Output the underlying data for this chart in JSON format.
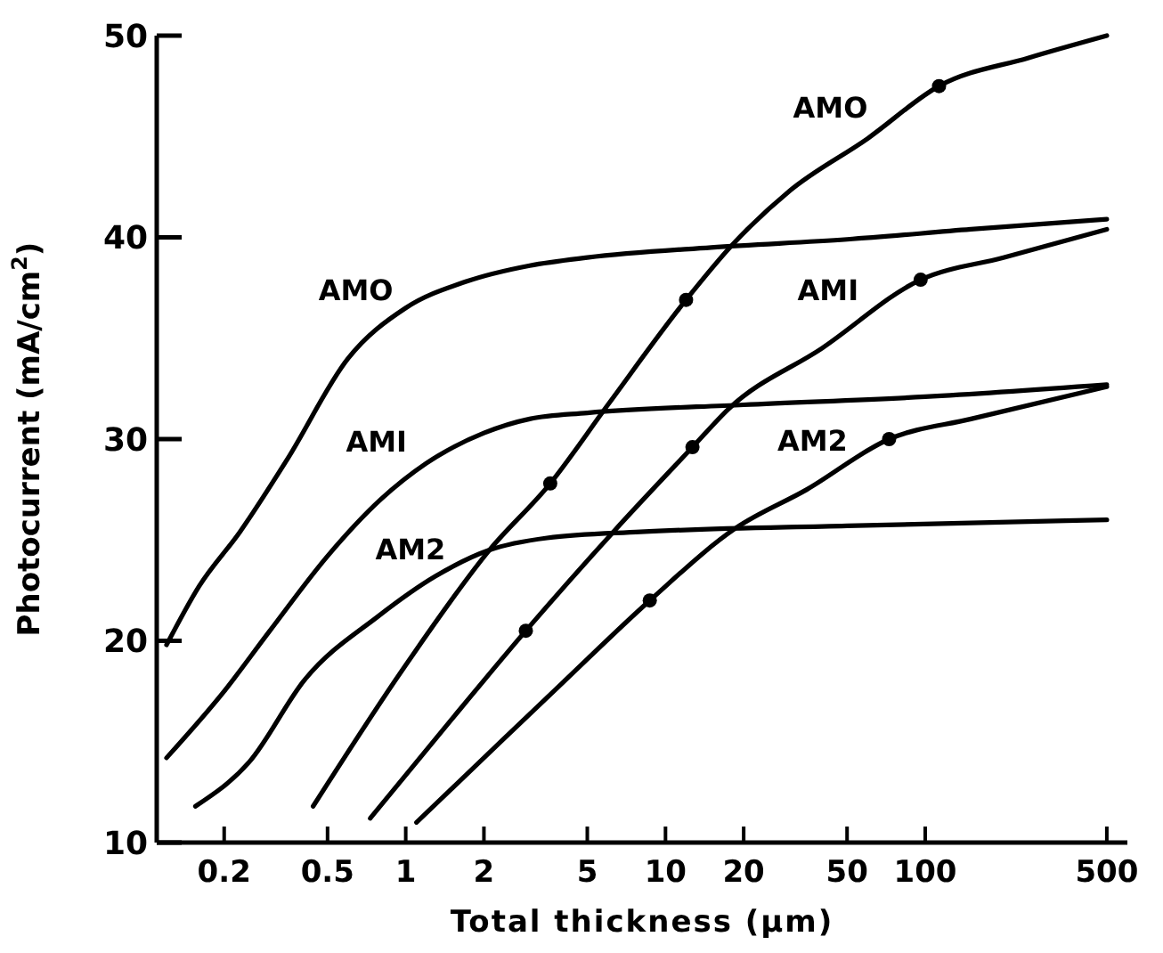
{
  "chart_data": {
    "type": "line",
    "xlabel": "Total thickness (μm)",
    "ylabel": "Photocurrent (mA/cm$^{2}$)",
    "log": "x",
    "xlim": [
      0.11,
      600
    ],
    "xticks": [
      0.2,
      0.5,
      1,
      2,
      5,
      10,
      20,
      50,
      100,
      500
    ],
    "ylim": [
      10,
      50
    ],
    "yticks": [
      10,
      20,
      30,
      40,
      50
    ],
    "grid": false,
    "legend": false,
    "marker": "none",
    "line_style": "solid",
    "series": [
      {
        "name": "AMO",
        "color": "#000000",
        "x": [
          0.12,
          0.16,
          0.23,
          0.35,
          0.6,
          1,
          1.7,
          3,
          5,
          15,
          50,
          150,
          500
        ],
        "values": [
          19.8,
          22.7,
          25.4,
          29,
          34,
          36.5,
          37.8,
          38.6,
          39,
          39.5,
          39.9,
          40.4,
          40.9
        ]
      },
      {
        "name": "AMI",
        "color": "#000000",
        "x": [
          0.12,
          0.2,
          0.3,
          0.5,
          0.8,
          1.2,
          2,
          3,
          5,
          20,
          100,
          500
        ],
        "values": [
          14.2,
          17.5,
          20.5,
          24.2,
          27,
          28.8,
          30.3,
          31,
          31.3,
          31.7,
          32.1,
          32.7
        ]
      },
      {
        "name": "AM2",
        "color": "#000000",
        "x": [
          0.155,
          0.25,
          0.41,
          0.78,
          1.3,
          2.1,
          3.5,
          8,
          50,
          500
        ],
        "values": [
          11.8,
          14,
          18.1,
          21.2,
          23.2,
          24.5,
          25.1,
          25.4,
          25.7,
          26
        ]
      },
      {
        "name": "AMO",
        "color": "#000000",
        "x": [
          0.44,
          1,
          2.1,
          3.6,
          6,
          12,
          18,
          30,
          60,
          113,
          250,
          500
        ],
        "values": [
          11.8,
          18.8,
          24.5,
          27.8,
          31.7,
          36.9,
          39.6,
          42.3,
          44.9,
          47.5,
          48.9,
          50
        ]
      },
      {
        "name": "AMI",
        "color": "#000000",
        "x": [
          0.73,
          1.5,
          2.9,
          6.4,
          12.7,
          17.5,
          40,
          96,
          200,
          500
        ],
        "values": [
          11.2,
          16.1,
          20.5,
          25.5,
          29.6,
          31.5,
          34.5,
          37.9,
          39,
          40.4
        ]
      },
      {
        "name": "AM2",
        "color": "#000000",
        "x": [
          1.1,
          2,
          4,
          8.7,
          18.7,
          35,
          72.6,
          150,
          500
        ],
        "values": [
          11,
          14.2,
          17.9,
          22,
          25.6,
          27.5,
          30,
          31,
          32.6
        ]
      },
      {
        "type": "scatter",
        "marker": "circle",
        "color": "#000000",
        "x": [
          3.6,
          12,
          113,
          2.9,
          12.7,
          96,
          8.7,
          72.6
        ],
        "values": [
          27.8,
          36.9,
          47.5,
          20.5,
          29.6,
          37.9,
          22,
          30
        ]
      }
    ]
  }
}
